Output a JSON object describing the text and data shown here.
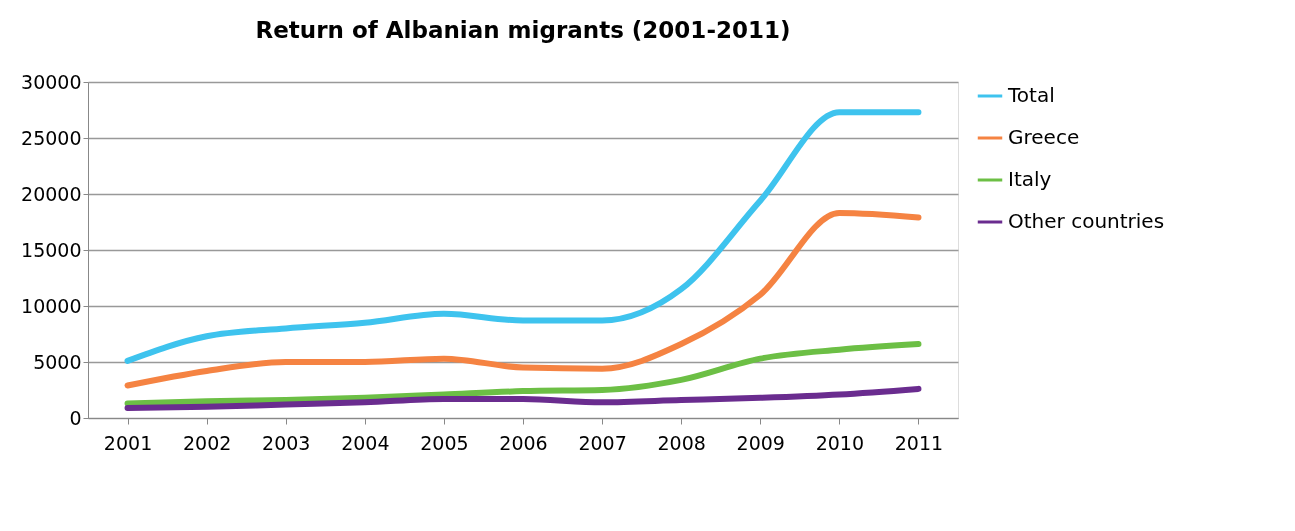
{
  "chart_data": {
    "type": "line",
    "title": "Return of Albanian migrants (2001-2011)",
    "categories": [
      "2001",
      "2002",
      "2003",
      "2004",
      "2005",
      "2006",
      "2007",
      "2008",
      "2009",
      "2010",
      "2011"
    ],
    "series": [
      {
        "name": "Total",
        "color": "#3ec3ee",
        "values": [
          5100,
          7300,
          8000,
          8500,
          9300,
          8700,
          8700,
          11500,
          19400,
          27300,
          27300
        ]
      },
      {
        "name": "Greece",
        "color": "#f58342",
        "values": [
          2900,
          4200,
          5000,
          5000,
          5300,
          4500,
          4400,
          6600,
          11000,
          18300,
          17900
        ]
      },
      {
        "name": "Italy",
        "color": "#6cbf45",
        "values": [
          1300,
          1500,
          1600,
          1800,
          2100,
          2400,
          2500,
          3400,
          5300,
          6100,
          6600
        ]
      },
      {
        "name": "Other countries",
        "color": "#6a2c8f",
        "values": [
          900,
          1000,
          1200,
          1400,
          1700,
          1700,
          1400,
          1600,
          1800,
          2100,
          2600
        ]
      }
    ],
    "ylim": [
      0,
      30000
    ],
    "yticks": [
      0,
      5000,
      10000,
      15000,
      20000,
      25000,
      30000
    ],
    "grid": "y",
    "legend": "right",
    "marker": "none",
    "line_style": "solid"
  }
}
